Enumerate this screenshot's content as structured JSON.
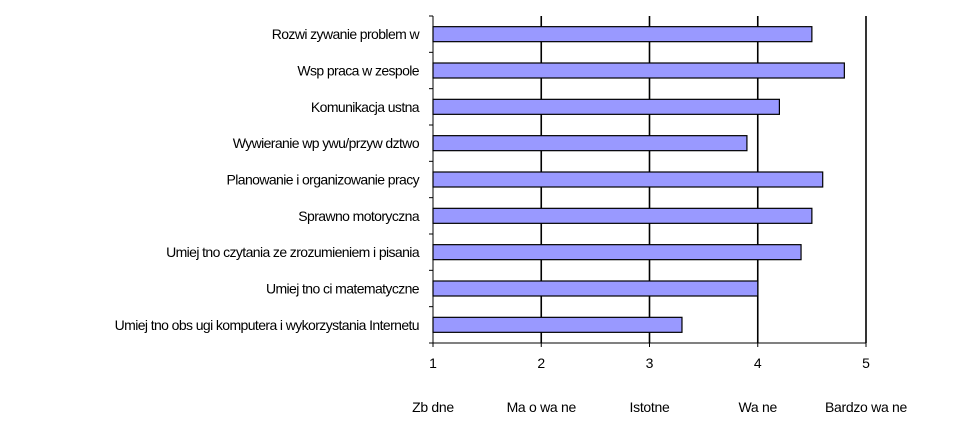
{
  "chart_data": {
    "type": "bar",
    "orientation": "horizontal",
    "categories": [
      "Rozwi zywanie problem w",
      "Wsp praca w zespole",
      "Komunikacja ustna",
      "Wywieranie wp ywu/przyw dztwo",
      "Planowanie i organizowanie pracy",
      "Sprawno motoryczna",
      "Umiej tno czytania ze zrozumieniem i pisania",
      "Umiej tno ci matematyczne",
      "Umiej tno obs ugi komputera i wykorzystania Internetu"
    ],
    "values": [
      4.5,
      4.8,
      4.2,
      3.9,
      4.6,
      4.5,
      4.4,
      4.0,
      3.3
    ],
    "xlim": [
      1,
      5
    ],
    "xticks": [
      1,
      2,
      3,
      4,
      5
    ],
    "xtick_labels": [
      "1",
      "2",
      "3",
      "4",
      "5"
    ],
    "scale_labels": [
      "Zb dne",
      "Ma o wa ne",
      "Istotne",
      "Wa ne",
      "Bardzo wa ne"
    ],
    "grid": "vertical",
    "legend": "none",
    "colors": {
      "bar_fill": "#9999ff",
      "bar_stroke": "#000000",
      "grid": "#000000",
      "background": "#ffffff"
    }
  }
}
